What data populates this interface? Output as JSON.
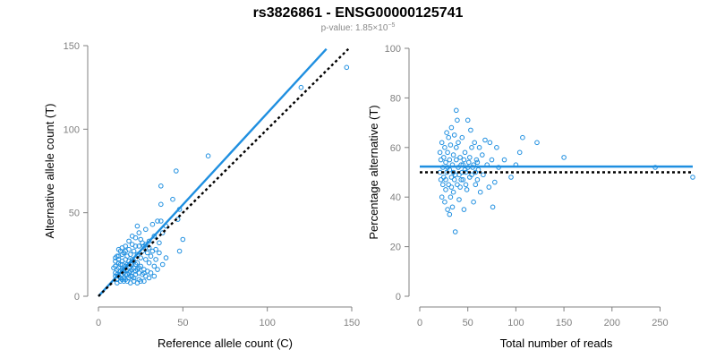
{
  "title": "rs3826861 - ENSG00000125741",
  "subtitle_prefix": "p-value: 1.85×10",
  "subtitle_exp": "−5",
  "colors": {
    "points": "#1f8fe0",
    "fit_line": "#1f8fe0",
    "reference_line": "#000000",
    "axes": "#808080"
  },
  "chart_data": [
    {
      "type": "scatter",
      "xlabel": "Reference allele count (C)",
      "ylabel": "Alternative allele count (T)",
      "xlim": [
        0,
        150
      ],
      "ylim": [
        0,
        150
      ],
      "xticks": [
        0,
        50,
        100,
        150
      ],
      "yticks": [
        0,
        50,
        100,
        150
      ],
      "grid": false,
      "legend": "none",
      "fit_line": {
        "x": [
          0,
          135
        ],
        "y": [
          0,
          148
        ],
        "style": "solid"
      },
      "reference_line": {
        "x": [
          0,
          148
        ],
        "y": [
          0,
          148
        ],
        "style": "dotted"
      },
      "points": [
        [
          147,
          137
        ],
        [
          120,
          125
        ],
        [
          65,
          84
        ],
        [
          46,
          75
        ],
        [
          37,
          66
        ],
        [
          44,
          58
        ],
        [
          48,
          52
        ],
        [
          37,
          55
        ],
        [
          47,
          46
        ],
        [
          50,
          34
        ],
        [
          48,
          27
        ],
        [
          37,
          45
        ],
        [
          40,
          42
        ],
        [
          35,
          45
        ],
        [
          32,
          43
        ],
        [
          28,
          40
        ],
        [
          38,
          38
        ],
        [
          33,
          36
        ],
        [
          30,
          33
        ],
        [
          36,
          32
        ],
        [
          27,
          30
        ],
        [
          25,
          34
        ],
        [
          24,
          38
        ],
        [
          23,
          42
        ],
        [
          22,
          35
        ],
        [
          20,
          36
        ],
        [
          18,
          33
        ],
        [
          16,
          30
        ],
        [
          14,
          29
        ],
        [
          12,
          28
        ],
        [
          26,
          27
        ],
        [
          29,
          26
        ],
        [
          31,
          24
        ],
        [
          34,
          22
        ],
        [
          33,
          18
        ],
        [
          30,
          20
        ],
        [
          28,
          22
        ],
        [
          25,
          23
        ],
        [
          23,
          25
        ],
        [
          21,
          27
        ],
        [
          19,
          25
        ],
        [
          17,
          24
        ],
        [
          15,
          26
        ],
        [
          13,
          27
        ],
        [
          11,
          24
        ],
        [
          10,
          21
        ],
        [
          12,
          20
        ],
        [
          14,
          19
        ],
        [
          16,
          18
        ],
        [
          18,
          17
        ],
        [
          20,
          16
        ],
        [
          22,
          15
        ],
        [
          24,
          14
        ],
        [
          26,
          13
        ],
        [
          28,
          12
        ],
        [
          30,
          11
        ],
        [
          27,
          9
        ],
        [
          24,
          10
        ],
        [
          21,
          11
        ],
        [
          19,
          12
        ],
        [
          17,
          13
        ],
        [
          15,
          14
        ],
        [
          13,
          15
        ],
        [
          11,
          16
        ],
        [
          10,
          18
        ],
        [
          11,
          13
        ],
        [
          12,
          12
        ],
        [
          13,
          11
        ],
        [
          14,
          10
        ],
        [
          15,
          9
        ],
        [
          16,
          10
        ],
        [
          18,
          11
        ],
        [
          20,
          12
        ],
        [
          22,
          13
        ],
        [
          14,
          13
        ],
        [
          12,
          17
        ],
        [
          17,
          16
        ],
        [
          19,
          19
        ],
        [
          21,
          21
        ],
        [
          23,
          20
        ],
        [
          25,
          18
        ],
        [
          27,
          16
        ],
        [
          29,
          15
        ],
        [
          24,
          17
        ],
        [
          22,
          19
        ],
        [
          20,
          22
        ],
        [
          18,
          21
        ],
        [
          16,
          22
        ],
        [
          14,
          21
        ],
        [
          12,
          22
        ],
        [
          10,
          14
        ],
        [
          11,
          10
        ],
        [
          13,
          9
        ],
        [
          15,
          11
        ],
        [
          17,
          9
        ],
        [
          19,
          8
        ],
        [
          21,
          9
        ],
        [
          23,
          8
        ],
        [
          25,
          9
        ],
        [
          27,
          14
        ],
        [
          31,
          14
        ],
        [
          33,
          12
        ],
        [
          35,
          16
        ],
        [
          38,
          19
        ],
        [
          40,
          23
        ],
        [
          36,
          26
        ],
        [
          34,
          28
        ],
        [
          32,
          27
        ],
        [
          30,
          29
        ],
        [
          28,
          31
        ],
        [
          26,
          32
        ],
        [
          24,
          30
        ],
        [
          22,
          30
        ],
        [
          20,
          31
        ],
        [
          18,
          28
        ],
        [
          16,
          27
        ],
        [
          14,
          25
        ],
        [
          12,
          24
        ],
        [
          10,
          23
        ],
        [
          9,
          17
        ],
        [
          10,
          12
        ],
        [
          11,
          8
        ],
        [
          15,
          16
        ],
        [
          17,
          19
        ],
        [
          19,
          15
        ],
        [
          21,
          17
        ],
        [
          23,
          16
        ],
        [
          13,
          19
        ],
        [
          18,
          14
        ],
        [
          20,
          19
        ],
        [
          16,
          13
        ],
        [
          14,
          16
        ]
      ]
    },
    {
      "type": "scatter",
      "xlabel": "Total number of reads",
      "ylabel": "Percentage alternative (T)",
      "xlim": [
        0,
        284
      ],
      "ylim": [
        0,
        100
      ],
      "xticks": [
        0,
        50,
        100,
        150,
        200,
        250
      ],
      "yticks": [
        0,
        20,
        40,
        60,
        80,
        100
      ],
      "grid": false,
      "legend": "none",
      "fit_line": {
        "x": [
          0,
          284
        ],
        "y": [
          52.3,
          52.3
        ],
        "style": "solid"
      },
      "reference_line": {
        "x": [
          0,
          284
        ],
        "y": [
          50,
          50
        ],
        "style": "dotted"
      },
      "points": [
        [
          284,
          48
        ],
        [
          245,
          52
        ],
        [
          150,
          56
        ],
        [
          122,
          62
        ],
        [
          107,
          64
        ],
        [
          100,
          53
        ],
        [
          104,
          58
        ],
        [
          95,
          48
        ],
        [
          88,
          55
        ],
        [
          82,
          52
        ],
        [
          80,
          60
        ],
        [
          78,
          46
        ],
        [
          76,
          36
        ],
        [
          75,
          55
        ],
        [
          73,
          62
        ],
        [
          72,
          44
        ],
        [
          70,
          53
        ],
        [
          68,
          63
        ],
        [
          66,
          49
        ],
        [
          65,
          57
        ],
        [
          63,
          42
        ],
        [
          62,
          60
        ],
        [
          61,
          51
        ],
        [
          60,
          47
        ],
        [
          59,
          55
        ],
        [
          58,
          45
        ],
        [
          57,
          62
        ],
        [
          56,
          38
        ],
        [
          55,
          52
        ],
        [
          54,
          60
        ],
        [
          53,
          67
        ],
        [
          52,
          48
        ],
        [
          51,
          54
        ],
        [
          50,
          71
        ],
        [
          49,
          43
        ],
        [
          48,
          50
        ],
        [
          47,
          58
        ],
        [
          46,
          35
        ],
        [
          45,
          53
        ],
        [
          44,
          64
        ],
        [
          43,
          47
        ],
        [
          42,
          56
        ],
        [
          41,
          39
        ],
        [
          40,
          52
        ],
        [
          39,
          45
        ],
        [
          39,
          71
        ],
        [
          38,
          60
        ],
        [
          38,
          75
        ],
        [
          37,
          49
        ],
        [
          37,
          26
        ],
        [
          36,
          65
        ],
        [
          35,
          57
        ],
        [
          35,
          42
        ],
        [
          34,
          53
        ],
        [
          34,
          36
        ],
        [
          33,
          68
        ],
        [
          33,
          48
        ],
        [
          32,
          61
        ],
        [
          32,
          40
        ],
        [
          31,
          55
        ],
        [
          31,
          51
        ],
        [
          30,
          64
        ],
        [
          30,
          45
        ],
        [
          29,
          58
        ],
        [
          29,
          35
        ],
        [
          28,
          50
        ],
        [
          28,
          66
        ],
        [
          27,
          43
        ],
        [
          27,
          54
        ],
        [
          26,
          60
        ],
        [
          26,
          38
        ],
        [
          25,
          48
        ],
        [
          25,
          56
        ],
        [
          24,
          52
        ],
        [
          24,
          45
        ],
        [
          23,
          62
        ],
        [
          23,
          40
        ],
        [
          22,
          55
        ],
        [
          22,
          47
        ],
        [
          21,
          50
        ],
        [
          21,
          58
        ],
        [
          31,
          33
        ],
        [
          33,
          44
        ],
        [
          35,
          50
        ],
        [
          36,
          47
        ],
        [
          38,
          55
        ],
        [
          40,
          62
        ],
        [
          42,
          44
        ],
        [
          44,
          50
        ],
        [
          46,
          55
        ],
        [
          48,
          45
        ],
        [
          50,
          52
        ],
        [
          52,
          56
        ],
        [
          54,
          49
        ],
        [
          56,
          53
        ],
        [
          58,
          50
        ],
        [
          60,
          54
        ],
        [
          27,
          47
        ],
        [
          29,
          52
        ],
        [
          41,
          49
        ],
        [
          43,
          53
        ],
        [
          45,
          47
        ],
        [
          47,
          51
        ]
      ]
    }
  ]
}
